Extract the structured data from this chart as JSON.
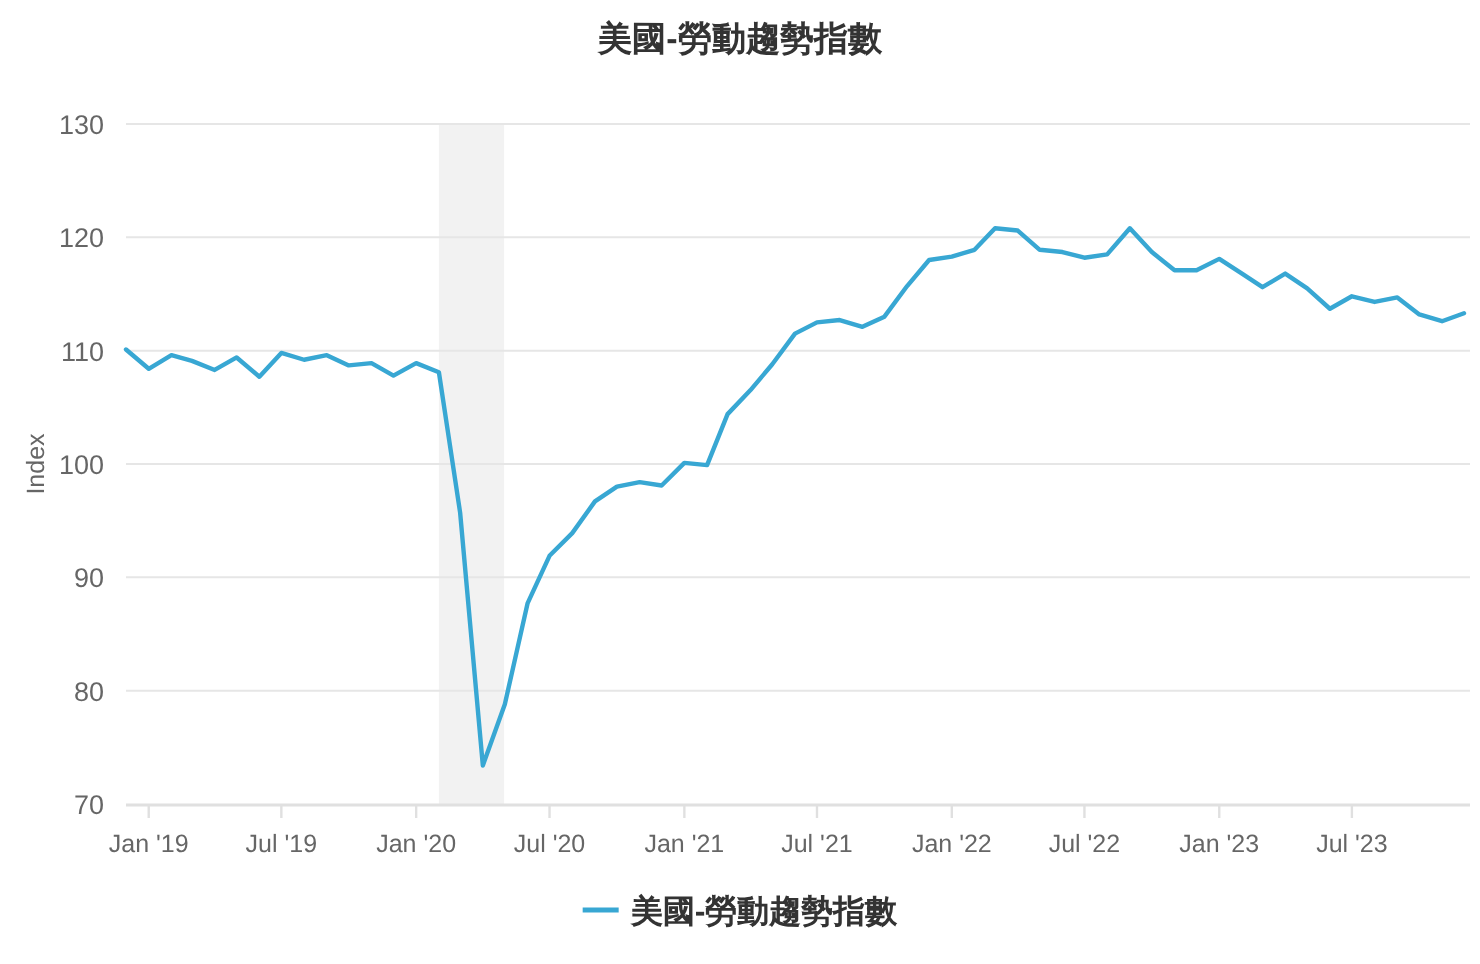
{
  "chart_data": {
    "type": "line",
    "title": "美國-勞動趨勢指數",
    "ylabel": "Index",
    "x": [
      "2018-12",
      "2019-01",
      "2019-02",
      "2019-03",
      "2019-04",
      "2019-05",
      "2019-06",
      "2019-07",
      "2019-08",
      "2019-09",
      "2019-10",
      "2019-11",
      "2019-12",
      "2020-01",
      "2020-02",
      "2020-03",
      "2020-04",
      "2020-05",
      "2020-06",
      "2020-07",
      "2020-08",
      "2020-09",
      "2020-10",
      "2020-11",
      "2020-12",
      "2021-01",
      "2021-02",
      "2021-03",
      "2021-04",
      "2021-05",
      "2021-06",
      "2021-07",
      "2021-08",
      "2021-09",
      "2021-10",
      "2021-11",
      "2021-12",
      "2022-01",
      "2022-02",
      "2022-03",
      "2022-04",
      "2022-05",
      "2022-06",
      "2022-07",
      "2022-08",
      "2022-09",
      "2022-10",
      "2022-11",
      "2022-12",
      "2023-01",
      "2023-02",
      "2023-03",
      "2023-04",
      "2023-05",
      "2023-06",
      "2023-07",
      "2023-08",
      "2023-09",
      "2023-10",
      "2023-11",
      "2023-12"
    ],
    "series": [
      {
        "name": "美國-勞動趨勢指數",
        "color": "#38a7d3",
        "values": [
          110.1,
          108.4,
          109.6,
          109.1,
          108.3,
          109.4,
          107.7,
          109.8,
          109.2,
          109.6,
          108.7,
          108.9,
          107.8,
          108.9,
          108.1,
          95.7,
          73.4,
          78.8,
          87.7,
          91.9,
          93.9,
          96.7,
          98.0,
          98.4,
          98.1,
          100.1,
          99.9,
          104.4,
          106.5,
          108.8,
          111.5,
          112.5,
          112.7,
          112.1,
          113.0,
          115.7,
          118.0,
          118.3,
          118.9,
          120.8,
          120.6,
          118.9,
          118.7,
          118.2,
          118.5,
          120.8,
          118.7,
          117.1,
          117.1,
          118.1,
          116.8,
          115.6,
          116.8,
          115.5,
          113.7,
          114.8,
          114.3,
          114.7,
          113.2,
          112.6,
          113.3
        ]
      }
    ],
    "xlim": [
      "2018-12",
      "2023-12"
    ],
    "xticks": [
      {
        "value": "2019-01",
        "label": "Jan '19"
      },
      {
        "value": "2019-07",
        "label": "Jul '19"
      },
      {
        "value": "2020-01",
        "label": "Jan '20"
      },
      {
        "value": "2020-07",
        "label": "Jul '20"
      },
      {
        "value": "2021-01",
        "label": "Jan '21"
      },
      {
        "value": "2021-07",
        "label": "Jul '21"
      },
      {
        "value": "2022-01",
        "label": "Jan '22"
      },
      {
        "value": "2022-07",
        "label": "Jul '22"
      },
      {
        "value": "2023-01",
        "label": "Jan '23"
      },
      {
        "value": "2023-07",
        "label": "Jul '23"
      }
    ],
    "ylim": [
      70,
      130
    ],
    "yticks": [
      70,
      80,
      90,
      100,
      110,
      120,
      130
    ],
    "bands": [
      {
        "axis": "x",
        "from": "2020-02",
        "to": "2020-04-30",
        "color": "#f2f2f2"
      }
    ],
    "grid": "y",
    "legend": "bottom"
  }
}
